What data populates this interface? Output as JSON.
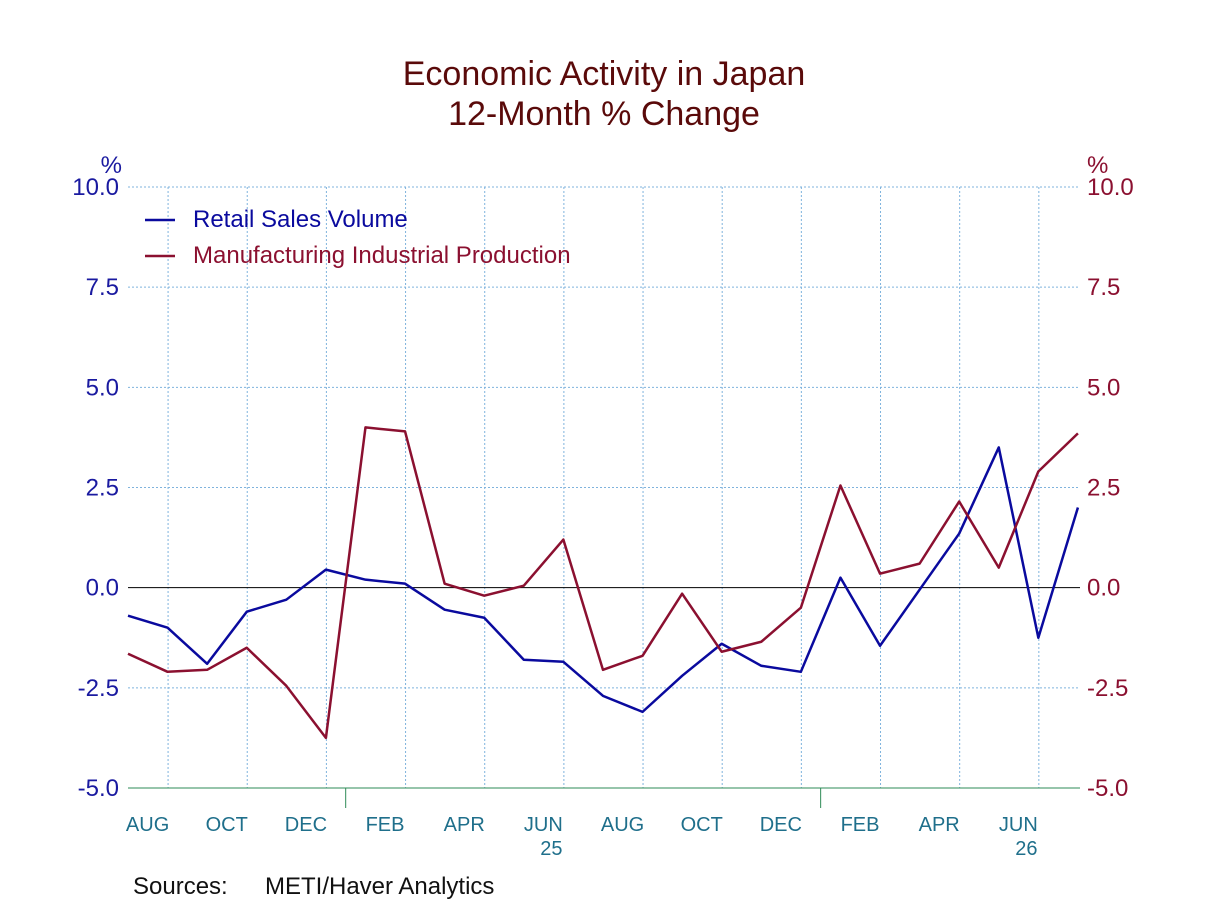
{
  "chart_data": {
    "type": "line",
    "title": "Economic Activity in Japan",
    "subtitle": "12-Month % Change",
    "ylabel_left": "%",
    "ylabel_right": "%",
    "ylim": [
      -5.0,
      10.0
    ],
    "yticks": [
      "10.0",
      "7.5",
      "5.0",
      "2.5",
      "0.0",
      "-2.5",
      "-5.0"
    ],
    "ytick_values": [
      10.0,
      7.5,
      5.0,
      2.5,
      0.0,
      -2.5,
      -5.0
    ],
    "xticks": [
      "AUG",
      "OCT",
      "DEC",
      "FEB",
      "APR",
      "JUN",
      "AUG",
      "OCT",
      "DEC",
      "FEB",
      "APR",
      "JUN"
    ],
    "xtick_month_index": [
      1,
      3,
      5,
      7,
      9,
      11,
      13,
      15,
      17,
      19,
      21,
      23
    ],
    "year_labels": [
      {
        "text": "25",
        "month_index": 11
      },
      {
        "text": "26",
        "month_index": 23
      }
    ],
    "year_boundaries": [
      6,
      18
    ],
    "x": [
      "Jul 2024",
      "Aug 2024",
      "Sep 2024",
      "Oct 2024",
      "Nov 2024",
      "Dec 2024",
      "Jan 2025",
      "Feb 2025",
      "Mar 2025",
      "Apr 2025",
      "May 2025",
      "Jun 2025",
      "Jul 2025",
      "Aug 2025",
      "Sep 2025",
      "Oct 2025",
      "Nov 2025",
      "Dec 2025",
      "Jan 2026",
      "Feb 2026",
      "Mar 2026",
      "Apr 2026",
      "May 2026",
      "Jun 2026",
      "Jul 2026"
    ],
    "series": [
      {
        "name": "Retail Sales Volume",
        "color": "#0a0a9e",
        "values": [
          -0.7,
          -1.0,
          -1.9,
          -0.6,
          -0.3,
          0.45,
          0.2,
          0.1,
          -0.55,
          -0.75,
          -1.8,
          -1.85,
          -2.7,
          -3.1,
          -2.2,
          -1.4,
          -1.95,
          -2.1,
          0.25,
          -1.45,
          -0.05,
          1.35,
          3.5,
          -1.25,
          2.0
        ]
      },
      {
        "name": "Manufacturing Industrial Production",
        "color": "#8b1030",
        "values": [
          -1.65,
          -2.1,
          -2.05,
          -1.5,
          -2.45,
          -3.75,
          4.0,
          3.9,
          0.1,
          -0.2,
          0.05,
          1.2,
          -2.05,
          -1.7,
          -0.15,
          -1.6,
          -1.35,
          -0.5,
          2.55,
          0.35,
          0.6,
          2.15,
          0.5,
          2.9,
          3.85
        ]
      }
    ],
    "grid": true,
    "legend_position": "top-left",
    "source_label": "Sources:",
    "source_text": "METI/Haver Analytics"
  }
}
